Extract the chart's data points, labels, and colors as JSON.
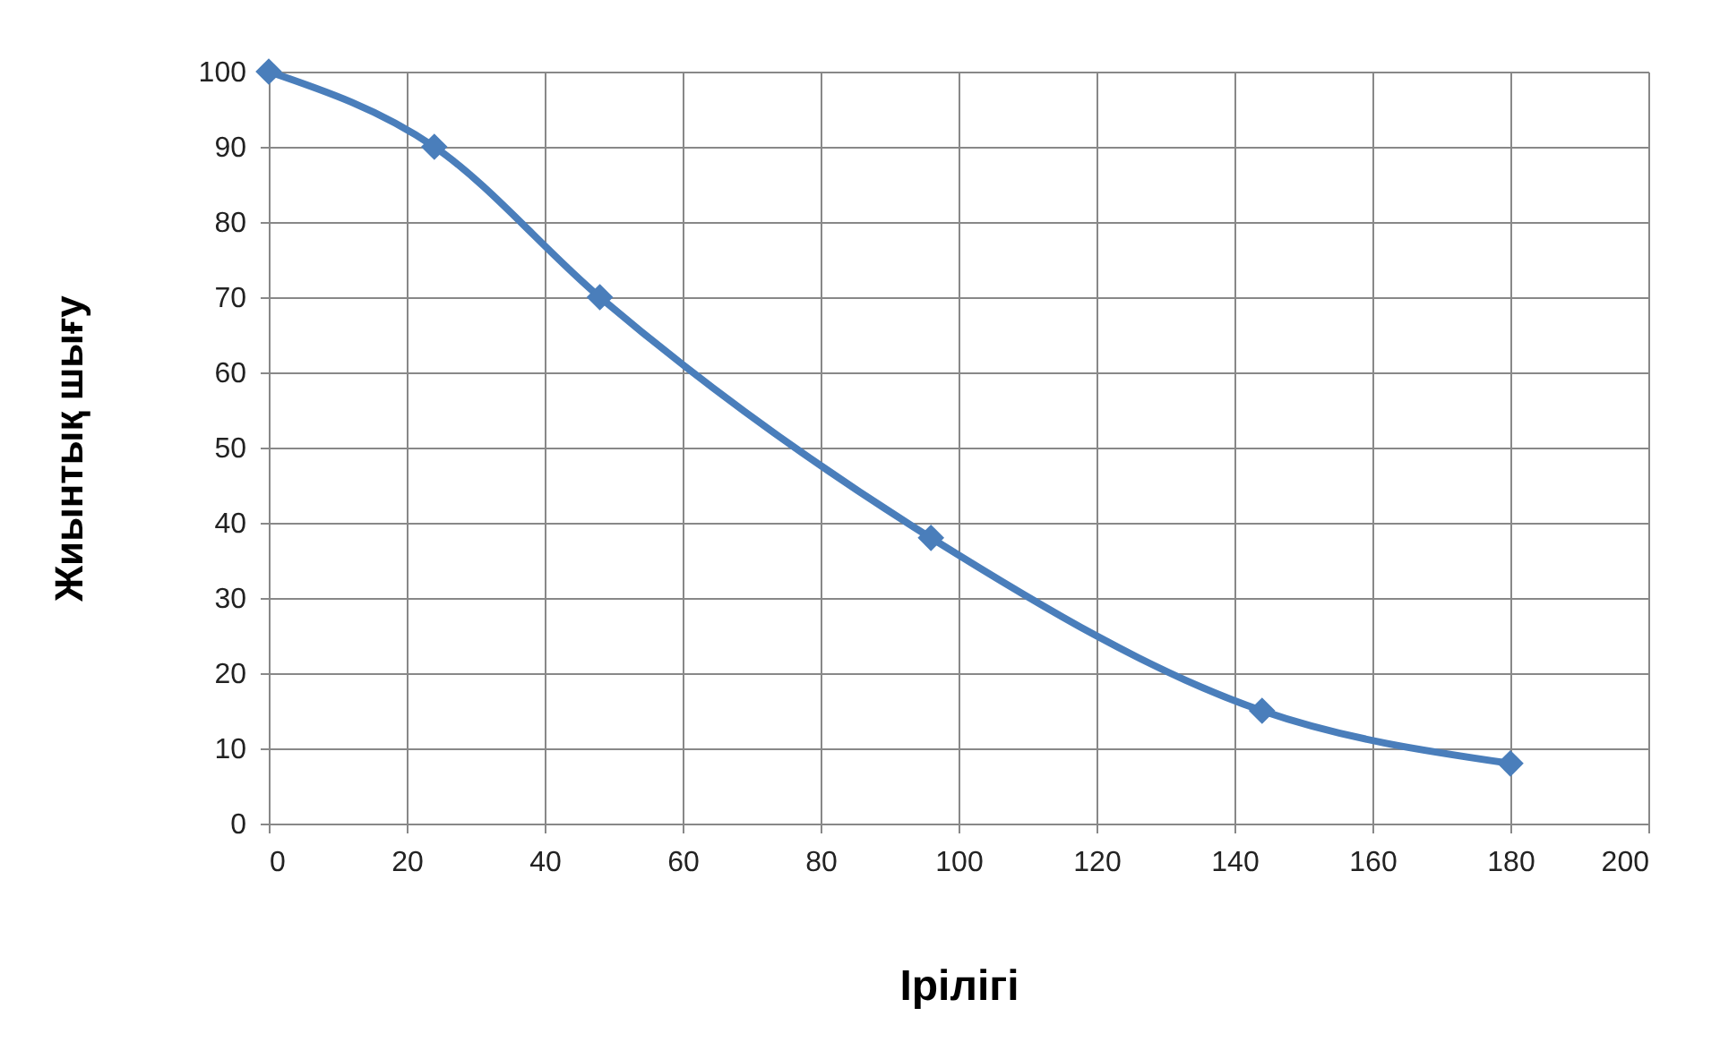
{
  "chart_data": {
    "type": "line",
    "xlabel": "Ірілігі",
    "ylabel": "Жиынтық шығу",
    "x": [
      0,
      24,
      48,
      96,
      144,
      180
    ],
    "series": [
      {
        "color": "#4a7ebb",
        "values": [
          100,
          90,
          70,
          38,
          15,
          8
        ]
      }
    ],
    "xlim": [
      0,
      200
    ],
    "xticks": [
      0,
      20,
      40,
      60,
      80,
      100,
      120,
      140,
      160,
      180,
      200
    ],
    "ylim": [
      0,
      100
    ],
    "yticks": [
      0,
      10,
      20,
      30,
      40,
      50,
      60,
      70,
      80,
      90,
      100
    ],
    "grid": true,
    "marker": "diamond",
    "line_style": "solid"
  }
}
